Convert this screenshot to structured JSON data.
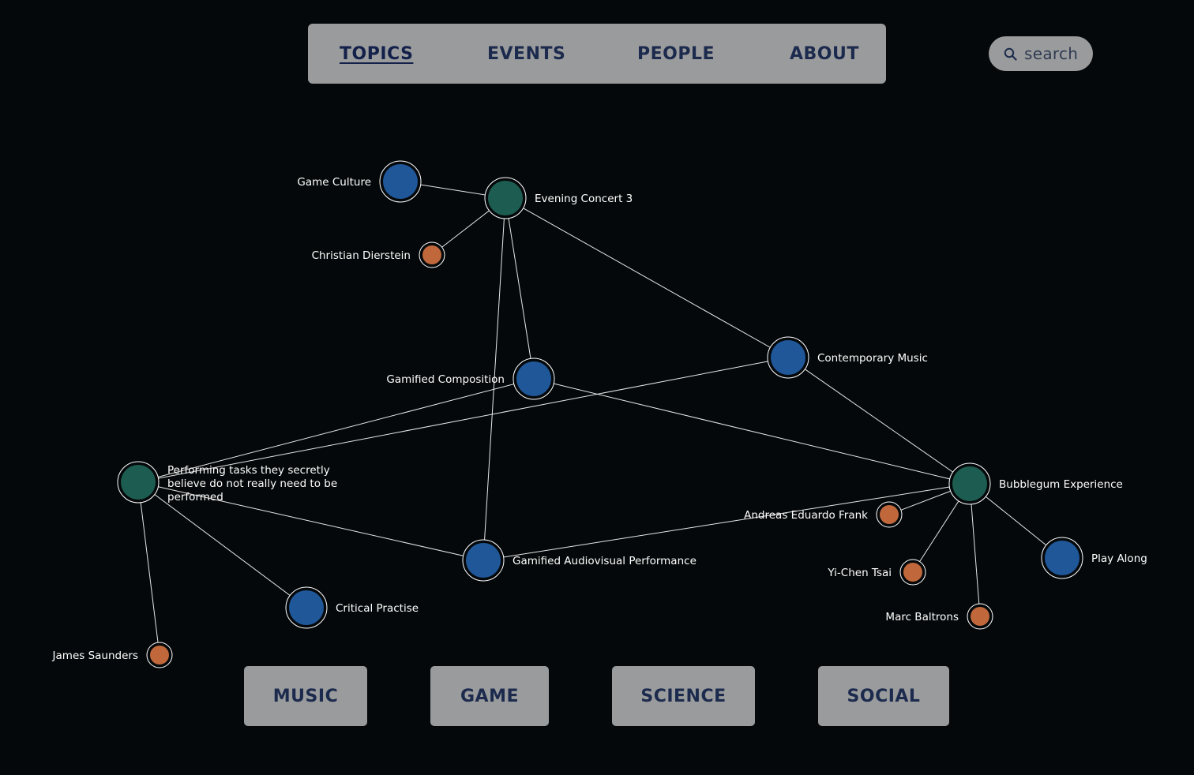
{
  "nav": {
    "items": [
      {
        "label": "TOPICS",
        "active": true
      },
      {
        "label": "EVENTS",
        "active": false
      },
      {
        "label": "PEOPLE",
        "active": false
      },
      {
        "label": "ABOUT",
        "active": false
      }
    ]
  },
  "search": {
    "placeholder": "search",
    "icon": "search-icon"
  },
  "colors": {
    "background": "#05080a",
    "panel": "#9a9b9c",
    "panel_text": "#1b2a4d",
    "topic": "#1f5799",
    "event": "#1d5c50",
    "person": "#c0683b",
    "edge": "#ffffff"
  },
  "graph": {
    "legend": {
      "topic": "blue node",
      "event": "green node",
      "person": "orange node"
    },
    "nodes": [
      {
        "id": "evening-concert-3",
        "type": "event",
        "label": "Evening Concert 3"
      },
      {
        "id": "game-culture",
        "type": "topic",
        "label": "Game Culture"
      },
      {
        "id": "christian-dierstein",
        "type": "person",
        "label": "Christian Dierstein"
      },
      {
        "id": "contemporary-music",
        "type": "topic",
        "label": "Contemporary Music"
      },
      {
        "id": "gamified-composition",
        "type": "topic",
        "label": "Gamified Composition"
      },
      {
        "id": "performing-tasks",
        "type": "event",
        "label": "Performing tasks they secretly believe do not really need to be performed"
      },
      {
        "id": "bubblegum-experience",
        "type": "event",
        "label": "Bubblegum Experience"
      },
      {
        "id": "andreas-eduardo-frank",
        "type": "person",
        "label": "Andreas Eduardo Frank"
      },
      {
        "id": "gamified-audiovisual-performance",
        "type": "topic",
        "label": "Gamified Audiovisual Performance"
      },
      {
        "id": "play-along",
        "type": "topic",
        "label": "Play Along"
      },
      {
        "id": "yi-chen-tsai",
        "type": "person",
        "label": "Yi-Chen Tsai"
      },
      {
        "id": "critical-practise",
        "type": "topic",
        "label": "Critical Practise"
      },
      {
        "id": "marc-baltrons",
        "type": "person",
        "label": "Marc Baltrons"
      },
      {
        "id": "james-saunders",
        "type": "person",
        "label": "James Saunders"
      }
    ],
    "edges": [
      [
        "game-culture",
        "evening-concert-3"
      ],
      [
        "christian-dierstein",
        "evening-concert-3"
      ],
      [
        "evening-concert-3",
        "contemporary-music"
      ],
      [
        "evening-concert-3",
        "gamified-composition"
      ],
      [
        "evening-concert-3",
        "gamified-audiovisual-performance"
      ],
      [
        "gamified-composition",
        "performing-tasks"
      ],
      [
        "gamified-composition",
        "bubblegum-experience"
      ],
      [
        "contemporary-music",
        "performing-tasks"
      ],
      [
        "contemporary-music",
        "bubblegum-experience"
      ],
      [
        "performing-tasks",
        "gamified-audiovisual-performance"
      ],
      [
        "performing-tasks",
        "critical-practise"
      ],
      [
        "performing-tasks",
        "james-saunders"
      ],
      [
        "gamified-audiovisual-performance",
        "bubblegum-experience"
      ],
      [
        "bubblegum-experience",
        "andreas-eduardo-frank"
      ],
      [
        "bubblegum-experience",
        "yi-chen-tsai"
      ],
      [
        "bubblegum-experience",
        "marc-baltrons"
      ],
      [
        "bubblegum-experience",
        "play-along"
      ]
    ]
  },
  "categories": [
    {
      "label": "MUSIC"
    },
    {
      "label": "GAME"
    },
    {
      "label": "SCIENCE"
    },
    {
      "label": "SOCIAL"
    }
  ]
}
